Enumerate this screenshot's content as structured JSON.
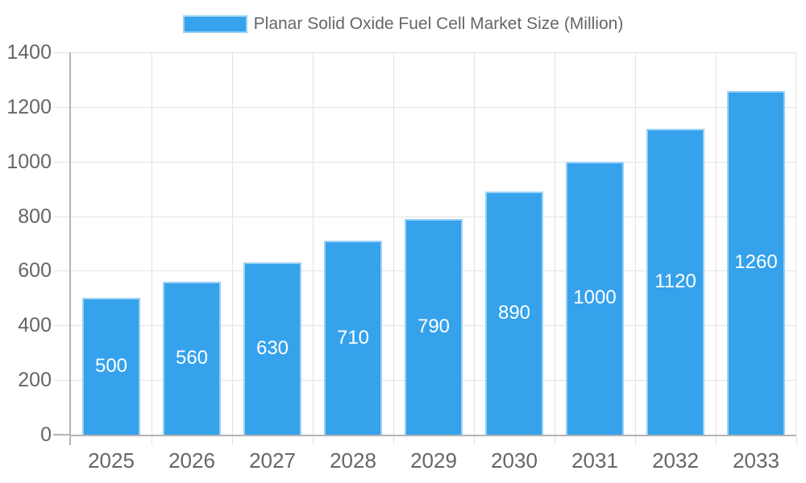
{
  "page": {
    "background": "#ffffff"
  },
  "chart_data": {
    "type": "bar",
    "title": "Planar Solid Oxide Fuel Cell Market Size (Million)",
    "legend_position": "top",
    "categories": [
      "2025",
      "2026",
      "2027",
      "2028",
      "2029",
      "2030",
      "2031",
      "2032",
      "2033"
    ],
    "values": [
      500,
      560,
      630,
      710,
      790,
      890,
      1000,
      1120,
      1260
    ],
    "bar_value_labels": [
      "500",
      "560",
      "630",
      "710",
      "790",
      "890",
      "1000",
      "1120",
      "1260"
    ],
    "xlabel": "",
    "ylabel": "",
    "ylim": [
      0,
      1400
    ],
    "ytick_step": 200,
    "yticks": [
      "0",
      "200",
      "400",
      "600",
      "800",
      "1000",
      "1200",
      "1400"
    ],
    "grid": true,
    "colors": {
      "bar": "#36A2EB",
      "bar_border": "#9AD0F5",
      "bar_label_text": "#FFFFFF",
      "axis_line": "#B4B4B4",
      "gridline": "#E3E3E3",
      "tick_text": "#666666",
      "legend_text": "#666666",
      "background": "#FFFFFF"
    }
  }
}
